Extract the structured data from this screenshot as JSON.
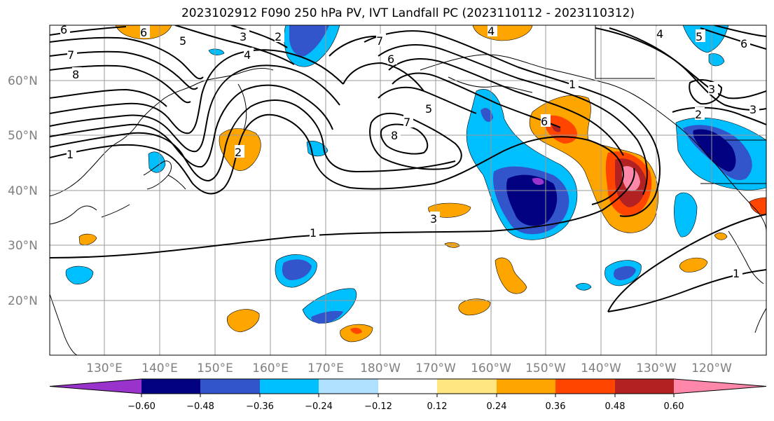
{
  "title": "2023102912 F090 250 hPa PV, IVT Landfall PC (2023110112 - 2023110312)",
  "lat_ticks": [
    "60°N",
    "50°N",
    "40°N",
    "30°N",
    "20°N"
  ],
  "lon_ticks": [
    "130°E",
    "140°E",
    "150°E",
    "160°E",
    "170°E",
    "180°W",
    "170°W",
    "160°W",
    "150°W",
    "140°W",
    "130°W",
    "120°W"
  ],
  "colorbar": {
    "colors": [
      "#9933cc",
      "#000080",
      "#3355cc",
      "#00bfff",
      "#b0e0ff",
      "#ffffff",
      "#ffe680",
      "#ffa500",
      "#ff4500",
      "#b22222",
      "#ff88aa"
    ],
    "tick_labels": [
      "−0.60",
      "−0.48",
      "−0.36",
      "−0.24",
      "−0.12",
      "0.12",
      "0.24",
      "0.36",
      "0.48",
      "0.60"
    ]
  },
  "contour_labels": [
    {
      "text": "6"
    },
    {
      "text": "6"
    },
    {
      "text": "5"
    },
    {
      "text": "7"
    },
    {
      "text": "8"
    },
    {
      "text": "3"
    },
    {
      "text": "4"
    },
    {
      "text": "2"
    },
    {
      "text": "7"
    },
    {
      "text": "6"
    },
    {
      "text": "4"
    },
    {
      "text": "5"
    },
    {
      "text": "7"
    },
    {
      "text": "8"
    },
    {
      "text": "1"
    },
    {
      "text": "2"
    },
    {
      "text": "1"
    },
    {
      "text": "3"
    },
    {
      "text": "6"
    },
    {
      "text": "1"
    },
    {
      "text": "4"
    },
    {
      "text": "3"
    },
    {
      "text": "2"
    },
    {
      "text": "5"
    },
    {
      "text": "6"
    },
    {
      "text": "1"
    },
    {
      "text": "3"
    }
  ]
}
